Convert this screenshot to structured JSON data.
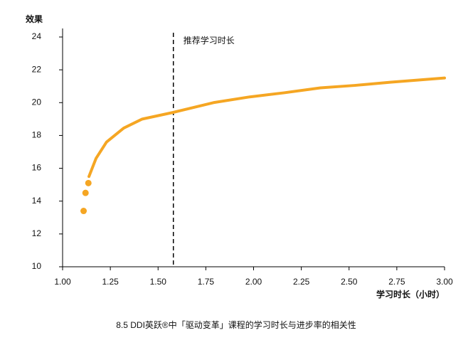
{
  "chart_data": {
    "type": "line",
    "caption": "8.5 DDI英跃®中「驱动变革」课程的学习时长与进步率的相关性",
    "y_label": "效果",
    "x_label": "学习时长（小时）",
    "color": "#f5a623",
    "curve": {
      "x": [
        1.138,
        1.175,
        1.23,
        1.32,
        1.417,
        1.577,
        1.79,
        1.98,
        2.16,
        2.35,
        2.53,
        2.72,
        3.0
      ],
      "values": [
        15.5,
        16.6,
        17.6,
        18.45,
        19.0,
        19.4,
        20.0,
        20.35,
        20.6,
        20.9,
        21.05,
        21.25,
        21.5
      ]
    },
    "points": {
      "x": [
        1.11,
        1.12,
        1.135
      ],
      "values": [
        13.4,
        14.5,
        15.1
      ]
    },
    "annotation": {
      "x": 1.58,
      "label": "推荐学习时长"
    },
    "xlim": [
      1.0,
      3.0
    ],
    "xticks": [
      {
        "value": 1.0,
        "label": "1.00"
      },
      {
        "value": 1.25,
        "label": "1.25"
      },
      {
        "value": 1.5,
        "label": "1.50"
      },
      {
        "value": 1.75,
        "label": "1.75"
      },
      {
        "value": 2.0,
        "label": "2.00"
      },
      {
        "value": 2.25,
        "label": "2.25"
      },
      {
        "value": 2.5,
        "label": "2.50"
      },
      {
        "value": 2.75,
        "label": "2.75"
      },
      {
        "value": 3.0,
        "label": "3.00"
      }
    ],
    "ylim": [
      10,
      24
    ],
    "yticks": [
      10,
      12,
      14,
      16,
      18,
      20,
      22,
      24
    ]
  }
}
